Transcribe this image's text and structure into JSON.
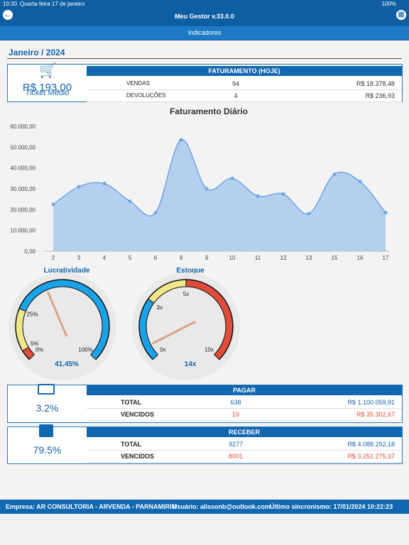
{
  "status_bar": {
    "time": "10:30",
    "date": "Quarta-feira 17 de janeiro",
    "battery": "100%"
  },
  "header": {
    "title": "Meu Gestor v.33.0.0",
    "subtitle": "Indicadores"
  },
  "period": "Janeiro / 2024",
  "sales": {
    "ticket_value": "R$ 193,00",
    "ticket_label": "Ticket Médio",
    "title": "FATURAMENTO (HOJE)",
    "rows": [
      [
        "VENDAS",
        94,
        "R$ 18.378,48"
      ],
      [
        "DEVOLUÇÕES",
        4,
        "R$ 236,93"
      ]
    ]
  },
  "chart_data": {
    "type": "area",
    "title": "Faturamento Diário",
    "categories": [
      "2",
      "3",
      "4",
      "5",
      "6",
      "8",
      "9",
      "10",
      "11",
      "12",
      "13",
      "15",
      "16",
      "17"
    ],
    "values": [
      22500,
      31000,
      32500,
      24000,
      18500,
      53500,
      30000,
      35000,
      26500,
      27500,
      18000,
      37000,
      33500,
      18500
    ],
    "color": "#a9c8ec",
    "line_color": "#6fa6e3",
    "ylim": [
      0,
      60000
    ],
    "yticks": [
      {
        "value": 0,
        "label": "0,00"
      },
      {
        "value": 10000,
        "label": "10.000,00"
      },
      {
        "value": 20000,
        "label": "20.000,00"
      },
      {
        "value": 30000,
        "label": "30.000,00"
      },
      {
        "value": 40000,
        "label": "40.000,00"
      },
      {
        "value": 50000,
        "label": "50.000,00"
      },
      {
        "value": 60000,
        "label": "60.000,00"
      }
    ],
    "grid": false
  },
  "gauges": [
    {
      "title": "Lucratividade",
      "value": 41.45,
      "value_label": "41.45%",
      "lim": [
        0,
        100
      ],
      "ticks": [
        {
          "value": 0,
          "label": "0%"
        },
        {
          "value": 5,
          "label": "5%"
        },
        {
          "value": 25,
          "label": "25%"
        },
        {
          "value": 100,
          "label": "100%"
        }
      ],
      "bands": [
        {
          "from": 0,
          "to": 5,
          "color": "#e04b3a"
        },
        {
          "from": 5,
          "to": 25,
          "color": "#f2e68a"
        },
        {
          "from": 25,
          "to": 100,
          "color": "#1aa3e8"
        }
      ]
    },
    {
      "title": "Estoque",
      "value": 14,
      "value_label": "14x",
      "lim": [
        0,
        10
      ],
      "ticks": [
        {
          "value": 0,
          "label": "0x"
        },
        {
          "value": 3,
          "label": "3x"
        },
        {
          "value": 5,
          "label": "5x"
        },
        {
          "value": 10,
          "label": "10x"
        }
      ],
      "bands": [
        {
          "from": 0,
          "to": 3,
          "color": "#1aa3e8"
        },
        {
          "from": 3,
          "to": 5,
          "color": "#f2e68a"
        },
        {
          "from": 5,
          "to": 10,
          "color": "#e04b3a"
        }
      ]
    }
  ],
  "pagar": {
    "percent": "3.2%",
    "title": "PAGAR",
    "rows": [
      [
        "TOTAL",
        638,
        "R$ 1.100.059,91"
      ],
      [
        "VENCIDOS",
        19,
        "R$ 35.302,67"
      ]
    ]
  },
  "receber": {
    "percent": "79.5%",
    "title": "RECEBER",
    "rows": [
      [
        "TOTAL",
        9277,
        "R$ 4.088.292,18"
      ],
      [
        "VENCIDOS",
        8001,
        "R$ 3.251.275,37"
      ]
    ]
  },
  "footer": {
    "company": "Empresa: AR CONSULTORIA - ARVENDA - PARNAMIRIM",
    "user": "Usuário: alissonb@outlook.com",
    "sync": "Último sincronismo: 17/01/2024 10:22:23"
  }
}
